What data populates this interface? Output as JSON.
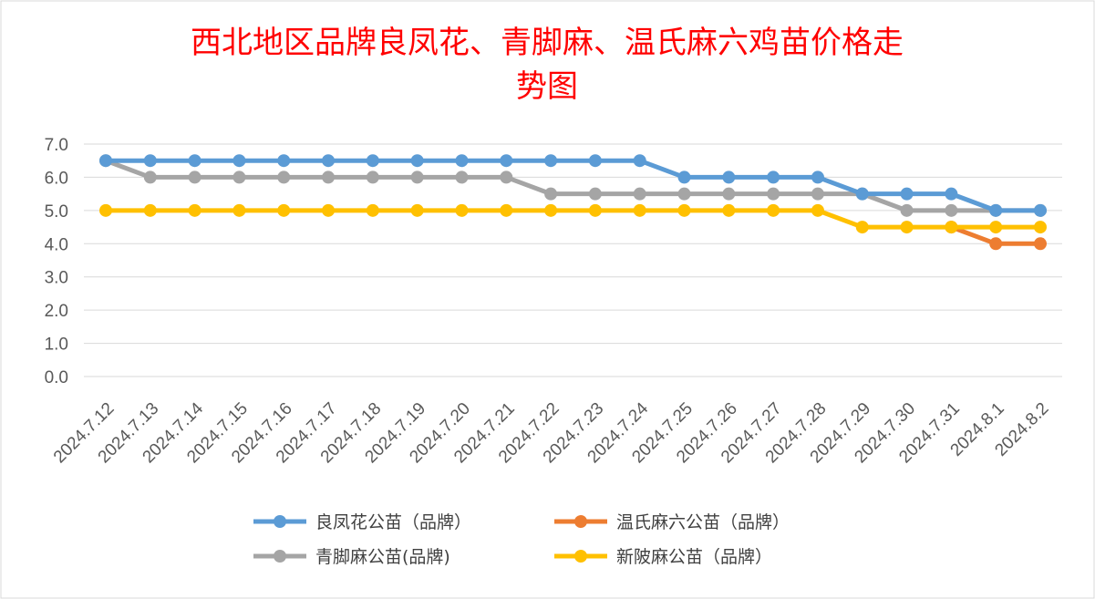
{
  "chart_data": {
    "type": "line",
    "title_line1": "西北地区品牌良凤花、青脚麻、温氏麻六鸡苗价格走",
    "title_line2": "势图",
    "categories": [
      "2024.7.12",
      "2024.7.13",
      "2024.7.14",
      "2024.7.15",
      "2024.7.16",
      "2024.7.17",
      "2024.7.18",
      "2024.7.19",
      "2024.7.20",
      "2024.7.21",
      "2024.7.22",
      "2024.7.23",
      "2024.7.24",
      "2024.7.25",
      "2024.7.26",
      "2024.7.27",
      "2024.7.28",
      "2024.7.29",
      "2024.7.30",
      "2024.7.31",
      "2024.8.1",
      "2024.8.2"
    ],
    "y_ticks": [
      "0.0",
      "1.0",
      "2.0",
      "3.0",
      "4.0",
      "5.0",
      "6.0",
      "7.0"
    ],
    "ylim": [
      0,
      7
    ],
    "grid": true,
    "legend_position": "bottom",
    "series": [
      {
        "name": "良凤花公苗（品牌）",
        "color": "#5b9bd5",
        "values": [
          6.5,
          6.5,
          6.5,
          6.5,
          6.5,
          6.5,
          6.5,
          6.5,
          6.5,
          6.5,
          6.5,
          6.5,
          6.5,
          6.0,
          6.0,
          6.0,
          6.0,
          5.5,
          5.5,
          5.5,
          5.0,
          5.0
        ]
      },
      {
        "name": "温氏麻六公苗（品牌）",
        "color": "#ed7d31",
        "values": [
          null,
          null,
          null,
          null,
          null,
          null,
          null,
          null,
          null,
          null,
          null,
          null,
          null,
          null,
          null,
          null,
          null,
          null,
          null,
          4.5,
          4.0,
          4.0
        ]
      },
      {
        "name": "青脚麻公苗(品牌)",
        "color": "#a5a5a5",
        "values": [
          6.5,
          6.0,
          6.0,
          6.0,
          6.0,
          6.0,
          6.0,
          6.0,
          6.0,
          6.0,
          5.5,
          5.5,
          5.5,
          5.5,
          5.5,
          5.5,
          5.5,
          5.5,
          5.0,
          5.0,
          5.0,
          5.0
        ]
      },
      {
        "name": "新陂麻公苗（品牌）",
        "color": "#ffc000",
        "values": [
          5.0,
          5.0,
          5.0,
          5.0,
          5.0,
          5.0,
          5.0,
          5.0,
          5.0,
          5.0,
          5.0,
          5.0,
          5.0,
          5.0,
          5.0,
          5.0,
          5.0,
          4.5,
          4.5,
          4.5,
          4.5,
          4.5
        ]
      }
    ],
    "legend_order": [
      0,
      1,
      2,
      3
    ]
  }
}
